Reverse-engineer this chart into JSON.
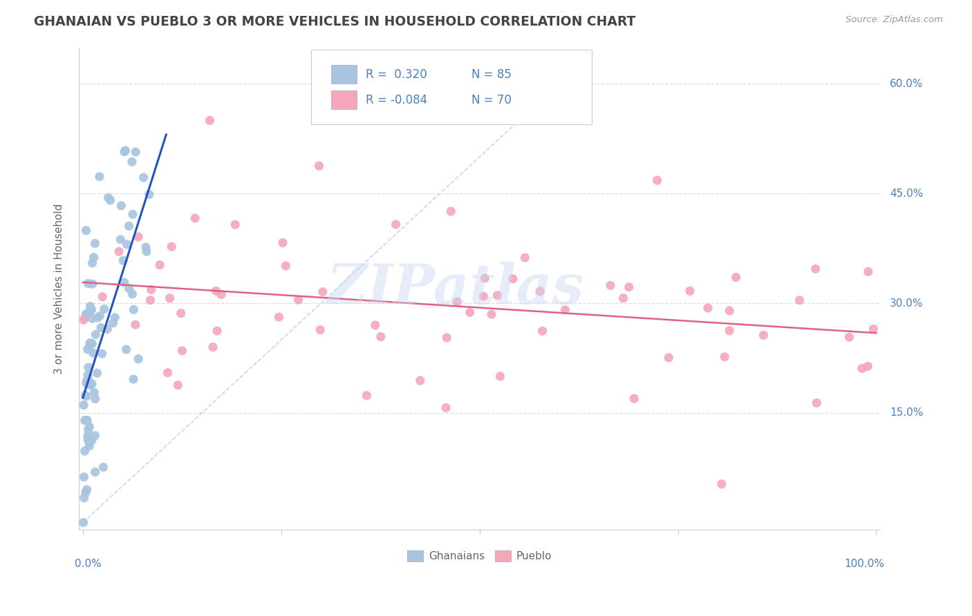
{
  "title": "GHANAIAN VS PUEBLO 3 OR MORE VEHICLES IN HOUSEHOLD CORRELATION CHART",
  "source": "Source: ZipAtlas.com",
  "ylabel": "3 or more Vehicles in Household",
  "legend_r1": "R =  0.320",
  "legend_n1": "N = 85",
  "legend_r2": "R = -0.084",
  "legend_n2": "N = 70",
  "blue_color": "#a8c4e0",
  "pink_color": "#f4a7b9",
  "blue_line_color": "#2255bb",
  "pink_line_color": "#e06080",
  "watermark": "ZIPatlas",
  "background_color": "#ffffff",
  "axis_label_color": "#4a7fc1",
  "title_color": "#444444",
  "ylabel_color": "#666666",
  "source_color": "#999999",
  "grid_color": "#dddddd",
  "spine_color": "#cccccc",
  "diag_color": "#b8ccee"
}
